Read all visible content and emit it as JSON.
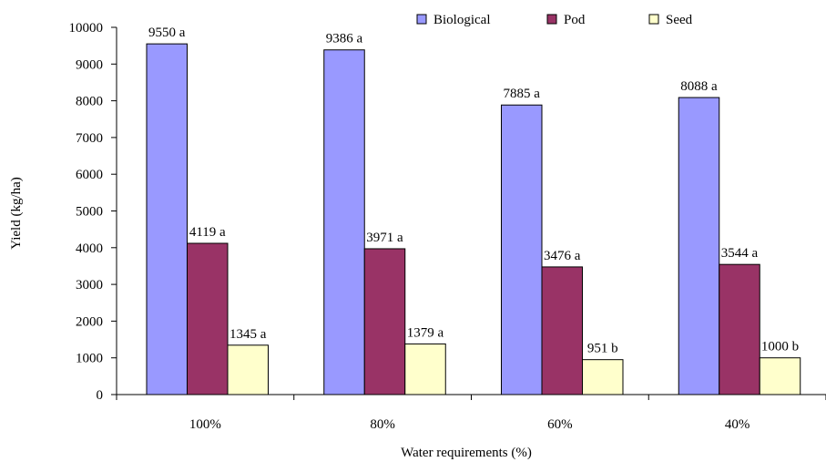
{
  "chart_data": {
    "type": "bar",
    "categories": [
      "100%",
      "80%",
      "60%",
      "40%"
    ],
    "series": [
      {
        "name": "Biological",
        "color": "#9999ff",
        "values": [
          9550,
          9386,
          7885,
          8088
        ],
        "labels": [
          "9550 a",
          "9386 a",
          "7885 a",
          "8088 a"
        ]
      },
      {
        "name": "Pod",
        "color": "#993366",
        "values": [
          4119,
          3971,
          3476,
          3544
        ],
        "labels": [
          "4119 a",
          "3971 a",
          "3476 a",
          "3544 a"
        ]
      },
      {
        "name": "Seed",
        "color": "#ffffcc",
        "values": [
          1345,
          1379,
          951,
          1000
        ],
        "labels": [
          "1345 a",
          "1379 a",
          "951 b",
          "1000 b"
        ]
      }
    ],
    "xlabel": "Water requirements (%)",
    "ylabel": "Yield (kg/ha)",
    "ylim": [
      0,
      10000
    ],
    "yticks": [
      0,
      1000,
      2000,
      3000,
      4000,
      5000,
      6000,
      7000,
      8000,
      9000,
      10000
    ],
    "grid": false,
    "legend_position": "top-right"
  }
}
